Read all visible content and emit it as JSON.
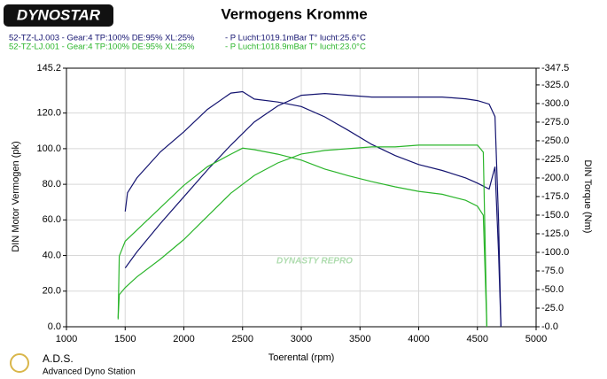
{
  "chart_data": {
    "type": "line",
    "title": "Vermogens Kromme",
    "logo": "DYNOSTAR",
    "runs": [
      {
        "label": "52-TZ-LJ.003 - Gear:4 TP:100% DE:95% XL:25%",
        "conditions": "- P Lucht:1019.1mBar T° lucht:25.6°C",
        "color": "#141470"
      },
      {
        "label": "52-TZ-LJ.001 - Gear:4 TP:100% DE:95% XL:25%",
        "conditions": "- P Lucht:1018.9mBar T° lucht:23.0°C",
        "color": "#2bb52b"
      }
    ],
    "xlabel": "Toerental (rpm)",
    "ylabel": "DIN Motor Vermogen (pk)",
    "y2label": "DIN Torque (Nm)",
    "watermark": "DYNASTY REPRO",
    "footer_title": "A.D.S.",
    "footer_subtitle": "Advanced Dyno Station",
    "xlim": [
      1000,
      5000
    ],
    "xticks": [
      1000,
      1500,
      2000,
      2500,
      3000,
      3500,
      4000,
      4500,
      5000
    ],
    "ylim": [
      0,
      145.2
    ],
    "yticks": [
      {
        "value": 0,
        "label": "0.0"
      },
      {
        "value": 20,
        "label": "20.0"
      },
      {
        "value": 40,
        "label": "40.0"
      },
      {
        "value": 60,
        "label": "60.0"
      },
      {
        "value": 80,
        "label": "80.0"
      },
      {
        "value": 100,
        "label": "100.0"
      },
      {
        "value": 120,
        "label": "120.0"
      },
      {
        "value": 145.2,
        "label": "145.2"
      }
    ],
    "y2lim": [
      0,
      347.5
    ],
    "y2ticks": [
      {
        "value": 0,
        "label": "-0.0"
      },
      {
        "value": 25,
        "label": "-25.0"
      },
      {
        "value": 50,
        "label": "-50.0"
      },
      {
        "value": 75,
        "label": "-75.0"
      },
      {
        "value": 100,
        "label": "-100.0"
      },
      {
        "value": 125,
        "label": "-125.0"
      },
      {
        "value": 150,
        "label": "-150.0"
      },
      {
        "value": 175,
        "label": "-175.0"
      },
      {
        "value": 200,
        "label": "-200.0"
      },
      {
        "value": 225,
        "label": "-225.0"
      },
      {
        "value": 250,
        "label": "-250.0"
      },
      {
        "value": 275,
        "label": "-275.0"
      },
      {
        "value": 300,
        "label": "-300.0"
      },
      {
        "value": 325,
        "label": "-325.0"
      },
      {
        "value": 347.5,
        "label": "-347.5"
      }
    ],
    "grid": true,
    "series": [
      {
        "color": "#141470",
        "axis": "y",
        "x": [
          1500,
          1600,
          1800,
          2000,
          2200,
          2400,
          2600,
          2800,
          3000,
          3200,
          3400,
          3600,
          3800,
          4000,
          4200,
          4400,
          4500,
          4600,
          4650,
          4680,
          4700
        ],
        "values": [
          33,
          42,
          58,
          73,
          88,
          102,
          115,
          124,
          130,
          131,
          130,
          129,
          129,
          129,
          129,
          128,
          127,
          125,
          118,
          60,
          0
        ]
      },
      {
        "color": "#141470",
        "axis": "y2",
        "x": [
          1500,
          1520,
          1600,
          1800,
          2000,
          2200,
          2400,
          2500,
          2600,
          2800,
          3000,
          3200,
          3400,
          3600,
          3800,
          4000,
          4200,
          4400,
          4500,
          4600,
          4650,
          4680,
          4700
        ],
        "values": [
          155,
          180,
          200,
          235,
          262,
          292,
          314,
          316,
          306,
          302,
          296,
          282,
          264,
          245,
          230,
          218,
          210,
          200,
          193,
          185,
          215,
          100,
          0
        ]
      },
      {
        "color": "#2bb52b",
        "axis": "y",
        "x": [
          1440,
          1450,
          1500,
          1600,
          1800,
          2000,
          2200,
          2400,
          2600,
          2800,
          3000,
          3200,
          3400,
          3600,
          3800,
          4000,
          4200,
          4400,
          4500,
          4550,
          4580
        ],
        "values": [
          5,
          18,
          22,
          28,
          38,
          49,
          62,
          75,
          85,
          92,
          97,
          99,
          100,
          101,
          101,
          102,
          102,
          102,
          102,
          98,
          0
        ]
      },
      {
        "color": "#2bb52b",
        "axis": "y2",
        "x": [
          1440,
          1450,
          1500,
          1600,
          1800,
          2000,
          2200,
          2400,
          2500,
          2600,
          2800,
          3000,
          3200,
          3400,
          3600,
          3800,
          4000,
          4200,
          4400,
          4500,
          4550,
          4580
        ],
        "values": [
          10,
          95,
          115,
          130,
          160,
          190,
          215,
          232,
          240,
          238,
          232,
          224,
          212,
          203,
          195,
          188,
          182,
          178,
          170,
          162,
          150,
          0
        ]
      }
    ]
  }
}
